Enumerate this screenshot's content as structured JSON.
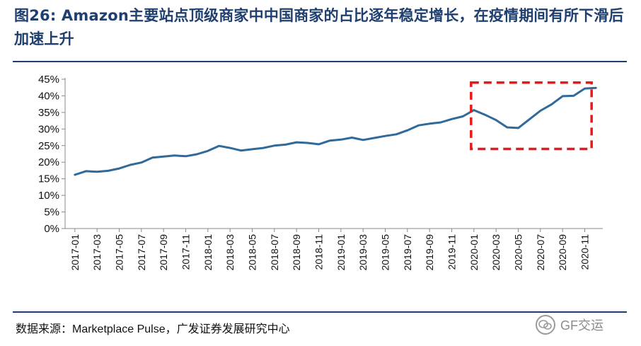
{
  "title": "图26: Amazon主要站点顶级商家中中国商家的占比逐年稳定增长，在疫情期间有所下滑后加速上升",
  "source": "数据来源：Marketplace Pulse，广发证券发展研究中心",
  "watermark": "GF交运",
  "colors": {
    "title": "#1f3f6e",
    "line": "#2f6a9a",
    "highlight": "#e8191b",
    "rule": "#1f3f6e"
  },
  "chart_data": {
    "type": "line",
    "title": "",
    "xlabel": "",
    "ylabel": "",
    "ylim": [
      0,
      45
    ],
    "yticks": [
      "0%",
      "5%",
      "10%",
      "15%",
      "20%",
      "25%",
      "30%",
      "35%",
      "40%",
      "45%"
    ],
    "grid": false,
    "legend": "none",
    "xticks": [
      "2017-01",
      "2017-03",
      "2017-05",
      "2017-07",
      "2017-09",
      "2017-11",
      "2018-01",
      "2018-03",
      "2018-05",
      "2018-07",
      "2018-09",
      "2018-11",
      "2019-01",
      "2019-03",
      "2019-05",
      "2019-07",
      "2019-09",
      "2019-11",
      "2020-01",
      "2020-03",
      "2020-05",
      "2020-07",
      "2020-09",
      "2020-11"
    ],
    "x": [
      "2017-01",
      "2017-02",
      "2017-03",
      "2017-04",
      "2017-05",
      "2017-06",
      "2017-07",
      "2017-08",
      "2017-09",
      "2017-10",
      "2017-11",
      "2017-12",
      "2018-01",
      "2018-02",
      "2018-03",
      "2018-04",
      "2018-05",
      "2018-06",
      "2018-07",
      "2018-08",
      "2018-09",
      "2018-10",
      "2018-11",
      "2018-12",
      "2019-01",
      "2019-02",
      "2019-03",
      "2019-04",
      "2019-05",
      "2019-06",
      "2019-07",
      "2019-08",
      "2019-09",
      "2019-10",
      "2019-11",
      "2019-12",
      "2020-01",
      "2020-02",
      "2020-03",
      "2020-04",
      "2020-05",
      "2020-06",
      "2020-07",
      "2020-08",
      "2020-09",
      "2020-10",
      "2020-11",
      "2020-12"
    ],
    "series": [
      {
        "values": [
          16.2,
          17.3,
          17.1,
          17.4,
          18.1,
          19.2,
          19.9,
          21.4,
          21.7,
          22.0,
          21.8,
          22.4,
          23.4,
          24.9,
          24.3,
          23.5,
          23.9,
          24.3,
          25.0,
          25.3,
          26.0,
          25.8,
          25.4,
          26.5,
          26.8,
          27.4,
          26.7,
          27.3,
          27.9,
          28.4,
          29.6,
          31.1,
          31.6,
          32.0,
          33.0,
          33.8,
          35.7,
          34.3,
          32.7,
          30.5,
          30.3,
          32.9,
          35.5,
          37.4,
          39.9,
          40.0,
          42.2,
          42.4
        ]
      }
    ],
    "annotation": {
      "type": "dashed-rectangle",
      "x_from": "2020-01",
      "x_to": "2020-12",
      "y_from": 24,
      "y_to": 44
    }
  }
}
